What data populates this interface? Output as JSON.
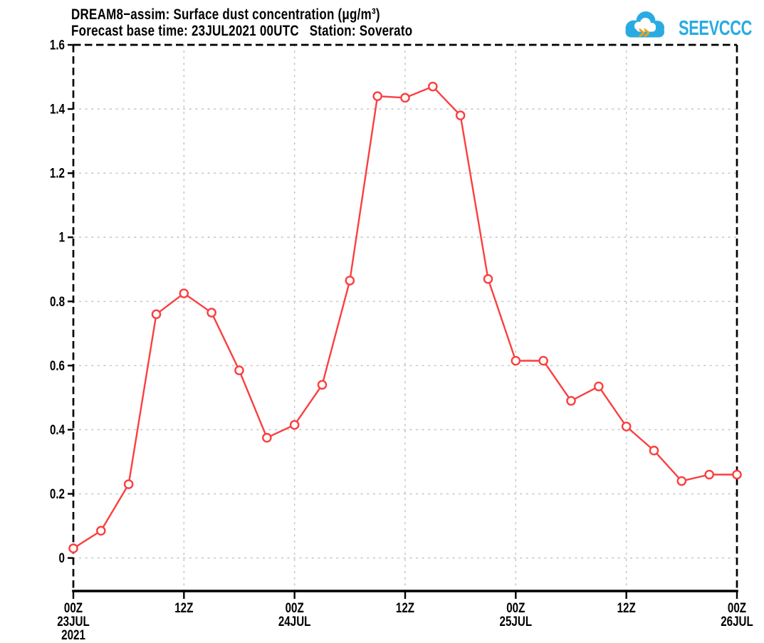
{
  "logo": {
    "text": "SEEVCCC",
    "arrow_glyph": "»",
    "blue": "#29abe2",
    "gold": "#e9a41b"
  },
  "chart_data": {
    "type": "line",
    "title": "DREAM8−assim: Surface dust concentration (μg/m³)",
    "subtitle": "Forecast base time: 23JUL2021 00UTC   Station: Soverato",
    "model": "DREAM8-assim",
    "variable": "Surface dust concentration",
    "units": "μg/m³",
    "forecast_base_time": "23JUL2021 00UTC",
    "station": "Soverato",
    "time_start": "23JUL2021 00Z",
    "time_end": "26JUL2021 00Z",
    "time_step_hours": 3,
    "x_hours": [
      0,
      3,
      6,
      9,
      12,
      15,
      18,
      21,
      24,
      27,
      30,
      33,
      36,
      39,
      42,
      45,
      48,
      51,
      54,
      57,
      60,
      63,
      66,
      69,
      72
    ],
    "values": [
      0.03,
      0.085,
      0.23,
      0.76,
      0.825,
      0.765,
      0.585,
      0.375,
      0.415,
      0.54,
      0.865,
      1.44,
      1.435,
      1.47,
      1.38,
      0.87,
      0.615,
      0.615,
      0.49,
      0.535,
      0.41,
      0.335,
      0.24,
      0.26,
      0.26
    ],
    "xlim_hours": [
      0,
      72
    ],
    "ylim": [
      -0.103,
      1.6
    ],
    "yticks": [
      0,
      0.2,
      0.4,
      0.6,
      0.8,
      1,
      1.2,
      1.4,
      1.6
    ],
    "ytick_labels": [
      "0",
      "0.2",
      "0.4",
      "0.6",
      "0.8",
      "1",
      "1.2",
      "1.4",
      "1.6"
    ],
    "xticks_hours": [
      0,
      12,
      24,
      36,
      48,
      60,
      72
    ],
    "xtick_labels": [
      [
        "00Z",
        "23JUL",
        "2021"
      ],
      [
        "12Z"
      ],
      [
        "00Z",
        "24JUL"
      ],
      [
        "12Z"
      ],
      [
        "00Z",
        "25JUL"
      ],
      [
        "12Z"
      ],
      [
        "00Z",
        "26JUL"
      ]
    ],
    "grid": true,
    "line_color": "#fa3f3f",
    "marker": "open-circle",
    "marker_fill": "#ffffff",
    "grid_color": "#c8c8c8",
    "frame_color": "#000000",
    "background": "#ffffff"
  }
}
